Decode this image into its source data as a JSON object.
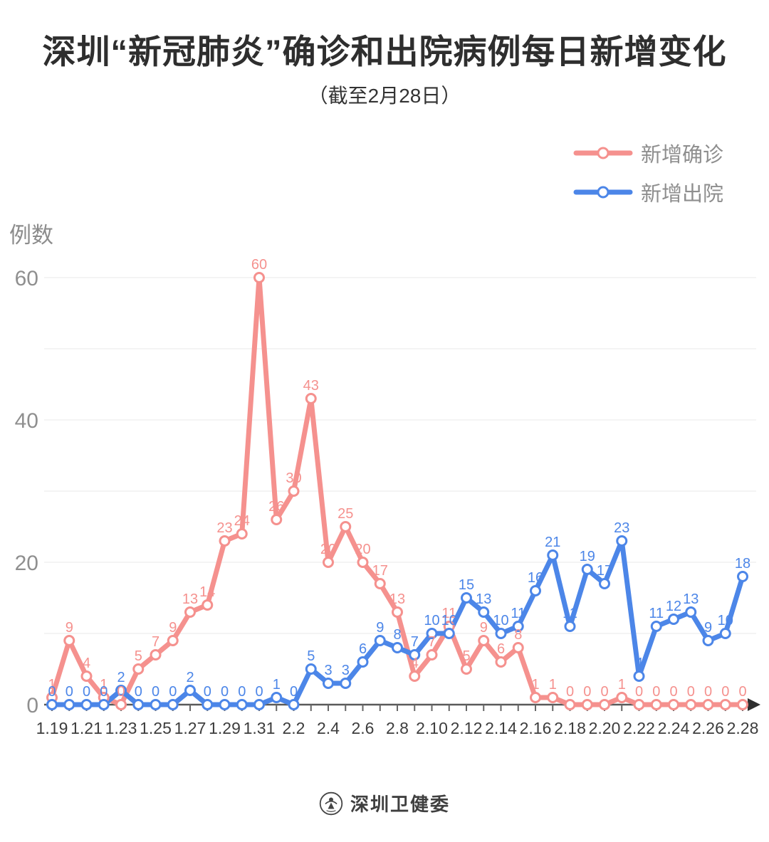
{
  "chart_data": {
    "type": "line",
    "title": "深圳“新冠肺炎”确诊和出院病例每日新增变化",
    "subtitle": "（截至2月28日）",
    "ylabel": "例数",
    "ylim": [
      0,
      60
    ],
    "yticks": [
      0,
      20,
      40,
      60
    ],
    "grid": "horizontal gridlines every 10, labels every 20",
    "legend_position": "top-right",
    "x": [
      "1.19",
      "1.20",
      "1.21",
      "1.22",
      "1.23",
      "1.24",
      "1.25",
      "1.26",
      "1.27",
      "1.28",
      "1.29",
      "1.30",
      "1.31",
      "2.1",
      "2.2",
      "2.3",
      "2.4",
      "2.5",
      "2.6",
      "2.7",
      "2.8",
      "2.9",
      "2.10",
      "2.11",
      "2.12",
      "2.13",
      "2.14",
      "2.15",
      "2.16",
      "2.17",
      "2.18",
      "2.19",
      "2.20",
      "2.21",
      "2.22",
      "2.23",
      "2.24",
      "2.25",
      "2.26",
      "2.27",
      "2.28"
    ],
    "x_label_step": 2,
    "series": [
      {
        "name": "新增确诊",
        "color": "#f5918e",
        "point_fill": "#ffffff",
        "values": [
          1,
          9,
          4,
          1,
          0,
          5,
          7,
          9,
          13,
          14,
          23,
          24,
          60,
          26,
          30,
          43,
          20,
          25,
          20,
          17,
          13,
          4,
          7,
          11,
          5,
          9,
          6,
          8,
          1,
          1,
          0,
          0,
          0,
          1,
          0,
          0,
          0,
          0,
          0,
          0,
          0
        ]
      },
      {
        "name": "新增出院",
        "color": "#4c86e8",
        "point_fill": "#ffffff",
        "values": [
          0,
          0,
          0,
          0,
          2,
          0,
          0,
          0,
          2,
          0,
          0,
          0,
          0,
          1,
          0,
          5,
          3,
          3,
          6,
          9,
          8,
          7,
          10,
          10,
          15,
          13,
          10,
          11,
          16,
          21,
          11,
          19,
          17,
          23,
          4,
          11,
          12,
          13,
          9,
          10,
          18
        ]
      }
    ]
  },
  "colors": {
    "title_text": "#2e2e2e",
    "legend_text": "#8e8e8e",
    "y_tick_text": "#8f8f8f",
    "x_tick_text": "#3d3d3d",
    "grid_line": "#e9e9e9",
    "axis_line": "#595959",
    "arrow": "#2f2f2f"
  },
  "footer": {
    "brand": "深圳卫健委"
  }
}
